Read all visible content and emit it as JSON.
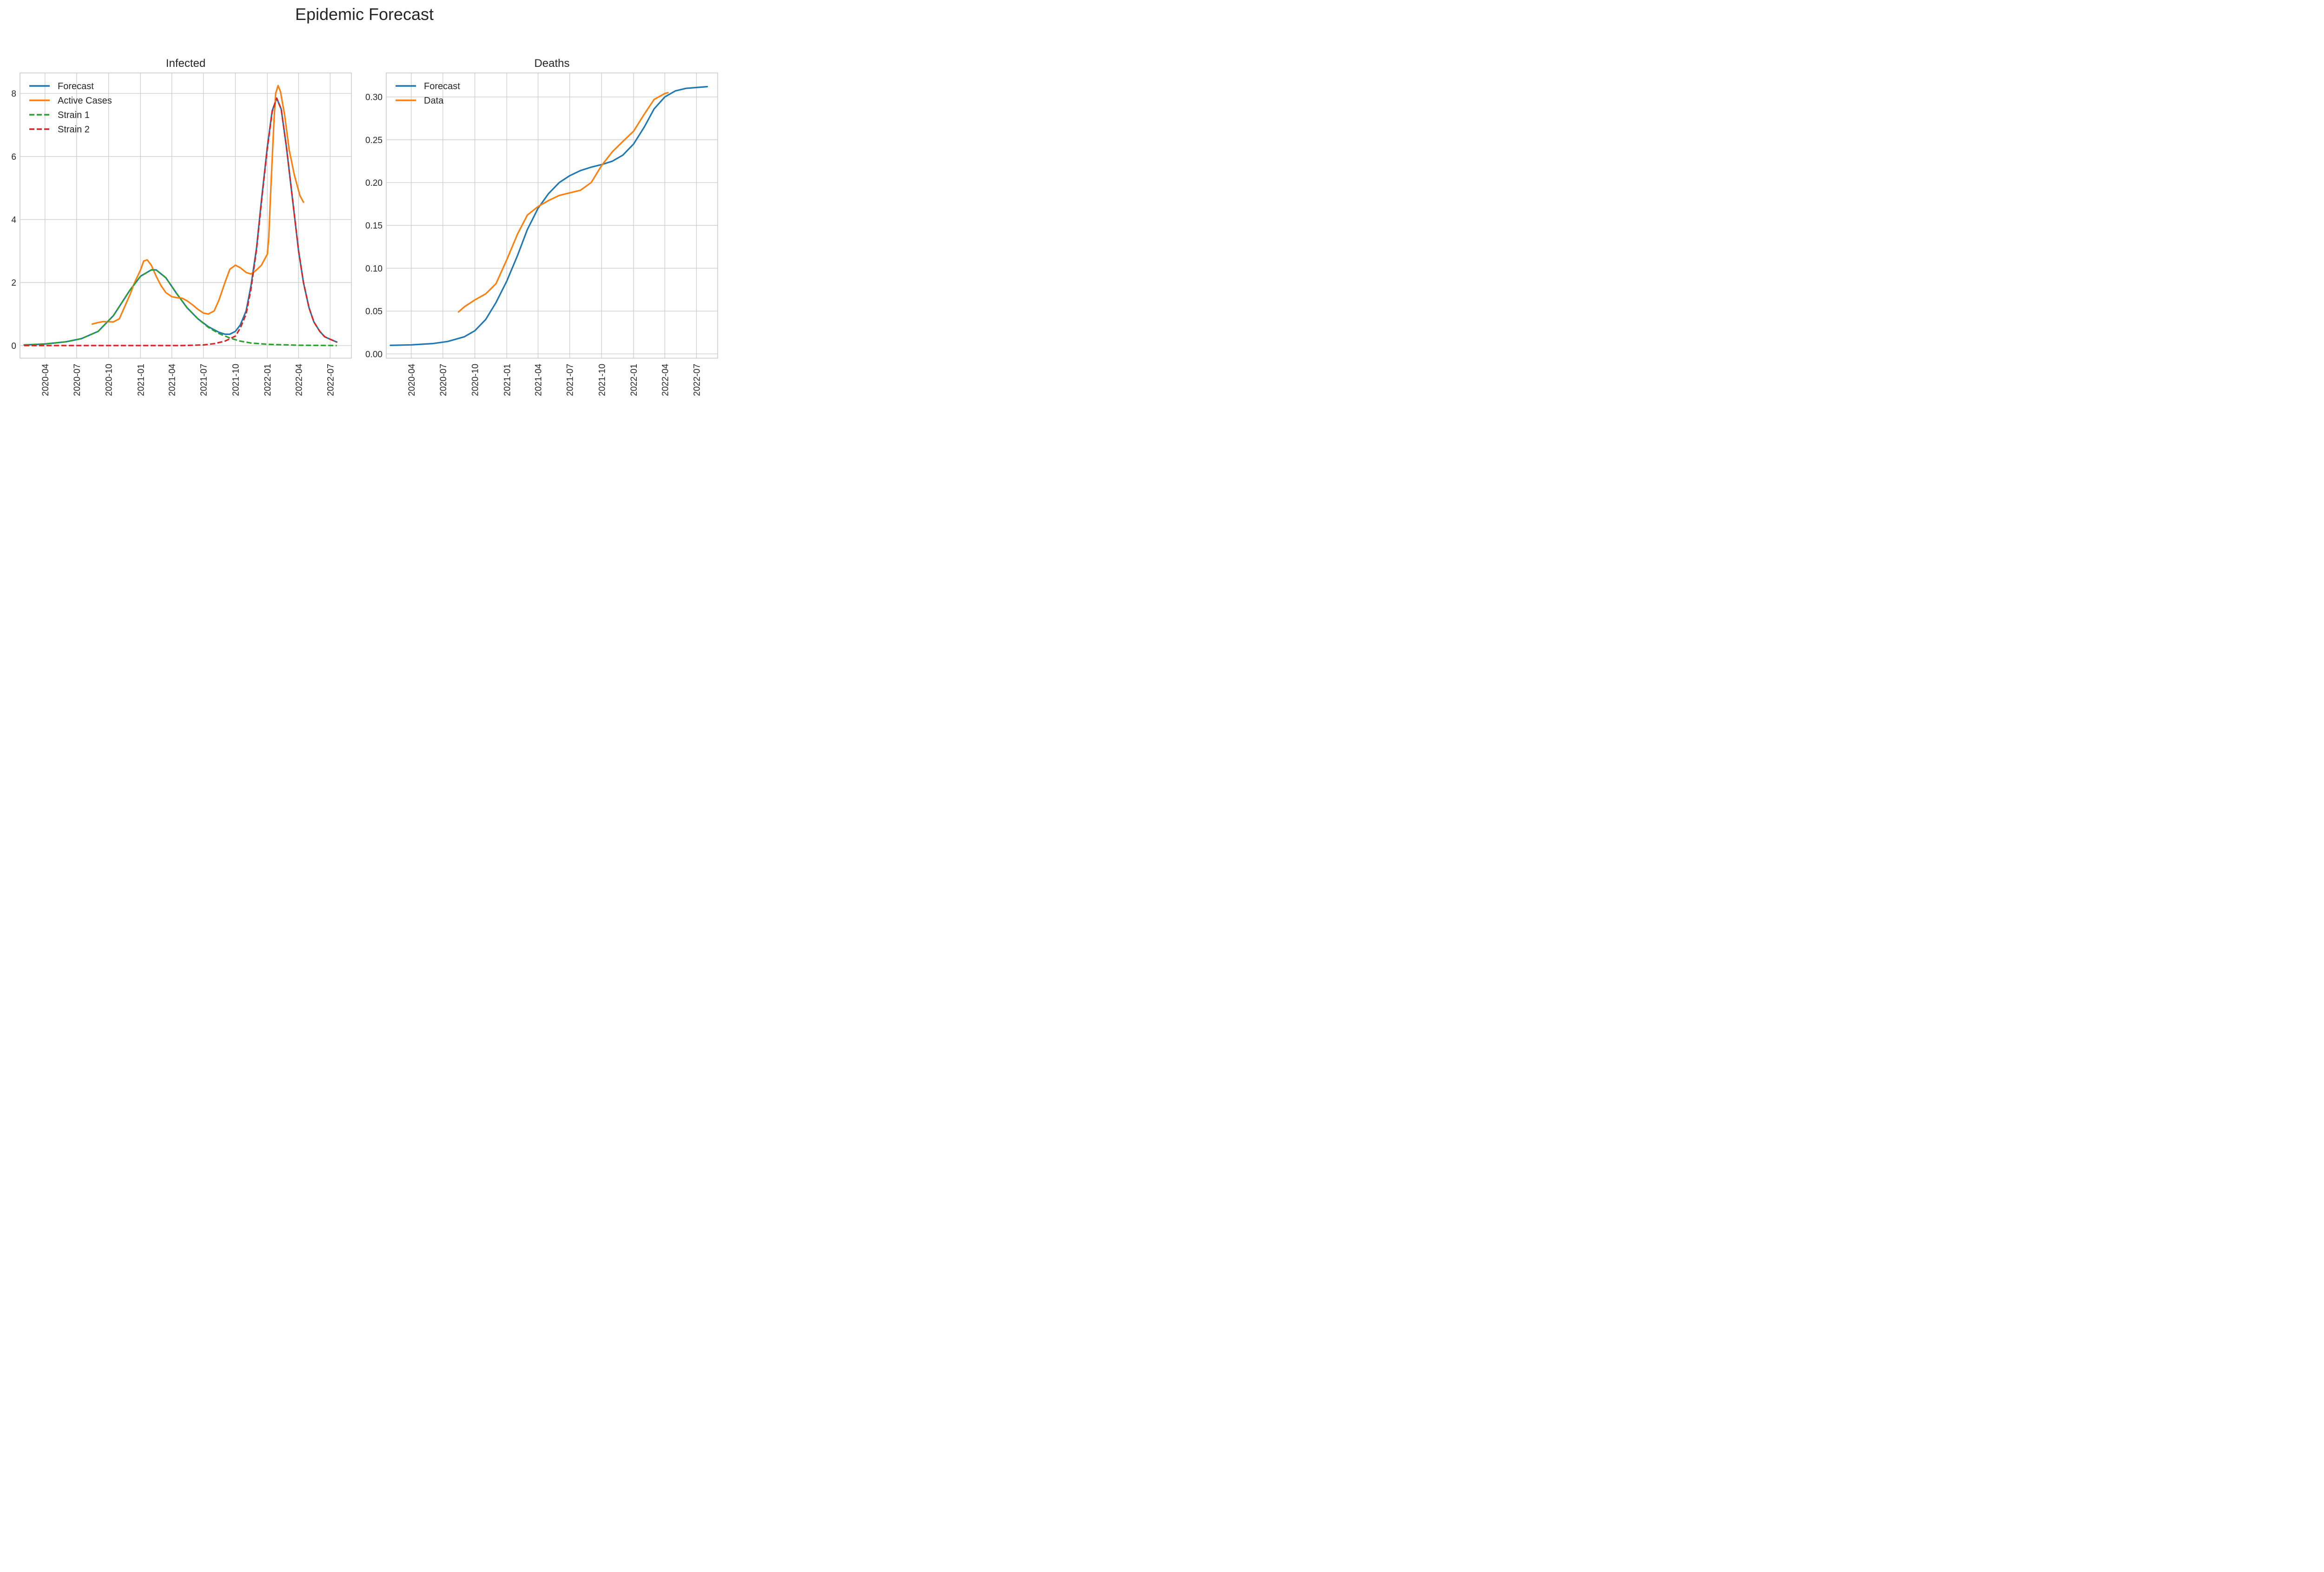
{
  "figure": {
    "title": "Epidemic Forecast"
  },
  "chart_data": [
    {
      "type": "line",
      "title": "Infected",
      "xlabel": "",
      "ylabel": "",
      "x_ticks": [
        "2020-04",
        "2020-07",
        "2020-10",
        "2021-01",
        "2021-04",
        "2021-07",
        "2021-10",
        "2022-01",
        "2022-04",
        "2022-07"
      ],
      "y_ticks": [
        "0",
        "2",
        "4",
        "6",
        "8"
      ],
      "xlim": [
        "2020-01-20",
        "2022-08-31"
      ],
      "ylim": [
        -0.4,
        8.65
      ],
      "grid": true,
      "legend_position": "top-left",
      "series": [
        {
          "name": "Forecast",
          "color": "#1f77b4",
          "style": "solid",
          "points": [
            [
              "2020-02-01",
              0.02
            ],
            [
              "2020-04-01",
              0.05
            ],
            [
              "2020-06-01",
              0.12
            ],
            [
              "2020-07-15",
              0.22
            ],
            [
              "2020-09-01",
              0.45
            ],
            [
              "2020-10-15",
              0.95
            ],
            [
              "2020-12-01",
              1.75
            ],
            [
              "2021-01-01",
              2.2
            ],
            [
              "2021-02-01",
              2.4
            ],
            [
              "2021-02-15",
              2.4
            ],
            [
              "2021-03-15",
              2.15
            ],
            [
              "2021-04-15",
              1.65
            ],
            [
              "2021-05-15",
              1.2
            ],
            [
              "2021-06-15",
              0.85
            ],
            [
              "2021-07-15",
              0.6
            ],
            [
              "2021-08-15",
              0.42
            ],
            [
              "2021-09-01",
              0.36
            ],
            [
              "2021-09-15",
              0.36
            ],
            [
              "2021-10-01",
              0.45
            ],
            [
              "2021-10-15",
              0.65
            ],
            [
              "2021-11-01",
              1.1
            ],
            [
              "2021-11-15",
              1.9
            ],
            [
              "2021-12-01",
              3.1
            ],
            [
              "2021-12-15",
              4.6
            ],
            [
              "2022-01-01",
              6.3
            ],
            [
              "2022-01-15",
              7.45
            ],
            [
              "2022-01-28",
              7.85
            ],
            [
              "2022-02-10",
              7.5
            ],
            [
              "2022-02-25",
              6.3
            ],
            [
              "2022-03-15",
              4.6
            ],
            [
              "2022-04-01",
              3.0
            ],
            [
              "2022-04-15",
              2.0
            ],
            [
              "2022-05-01",
              1.2
            ],
            [
              "2022-05-15",
              0.75
            ],
            [
              "2022-06-01",
              0.45
            ],
            [
              "2022-06-15",
              0.28
            ],
            [
              "2022-07-01",
              0.2
            ],
            [
              "2022-07-20",
              0.11
            ]
          ]
        },
        {
          "name": "Active Cases",
          "color": "#ff7f0e",
          "style": "solid",
          "points": [
            [
              "2020-08-15",
              0.68
            ],
            [
              "2020-09-01",
              0.73
            ],
            [
              "2020-09-15",
              0.76
            ],
            [
              "2020-10-15",
              0.75
            ],
            [
              "2020-11-01",
              0.85
            ],
            [
              "2020-11-15",
              1.2
            ],
            [
              "2020-12-01",
              1.6
            ],
            [
              "2020-12-15",
              2.0
            ],
            [
              "2021-01-01",
              2.4
            ],
            [
              "2021-01-10",
              2.68
            ],
            [
              "2021-01-20",
              2.72
            ],
            [
              "2021-02-01",
              2.55
            ],
            [
              "2021-02-15",
              2.2
            ],
            [
              "2021-03-01",
              1.9
            ],
            [
              "2021-03-15",
              1.68
            ],
            [
              "2021-04-01",
              1.55
            ],
            [
              "2021-04-15",
              1.52
            ],
            [
              "2021-05-01",
              1.5
            ],
            [
              "2021-05-15",
              1.42
            ],
            [
              "2021-06-01",
              1.28
            ],
            [
              "2021-06-15",
              1.15
            ],
            [
              "2021-07-01",
              1.03
            ],
            [
              "2021-07-15",
              1.0
            ],
            [
              "2021-08-01",
              1.1
            ],
            [
              "2021-08-15",
              1.45
            ],
            [
              "2021-09-01",
              2.0
            ],
            [
              "2021-09-15",
              2.42
            ],
            [
              "2021-10-01",
              2.55
            ],
            [
              "2021-10-15",
              2.47
            ],
            [
              "2021-11-01",
              2.32
            ],
            [
              "2021-11-15",
              2.27
            ],
            [
              "2021-12-01",
              2.4
            ],
            [
              "2021-12-15",
              2.55
            ],
            [
              "2022-01-01",
              2.9
            ],
            [
              "2022-01-05",
              3.4
            ],
            [
              "2022-01-12",
              5.2
            ],
            [
              "2022-01-20",
              7.1
            ],
            [
              "2022-01-25",
              8.0
            ],
            [
              "2022-02-01",
              8.25
            ],
            [
              "2022-02-08",
              8.05
            ],
            [
              "2022-02-20",
              7.3
            ],
            [
              "2022-03-05",
              6.2
            ],
            [
              "2022-03-20",
              5.4
            ],
            [
              "2022-04-05",
              4.75
            ],
            [
              "2022-04-15",
              4.55
            ]
          ]
        },
        {
          "name": "Strain 1",
          "color": "#2ca02c",
          "style": "dashed",
          "points": [
            [
              "2020-02-01",
              0.02
            ],
            [
              "2020-04-01",
              0.05
            ],
            [
              "2020-06-01",
              0.12
            ],
            [
              "2020-07-15",
              0.22
            ],
            [
              "2020-09-01",
              0.45
            ],
            [
              "2020-10-15",
              0.95
            ],
            [
              "2020-12-01",
              1.75
            ],
            [
              "2021-01-01",
              2.2
            ],
            [
              "2021-02-01",
              2.4
            ],
            [
              "2021-02-15",
              2.4
            ],
            [
              "2021-03-15",
              2.15
            ],
            [
              "2021-04-15",
              1.65
            ],
            [
              "2021-05-15",
              1.2
            ],
            [
              "2021-06-15",
              0.85
            ],
            [
              "2021-07-15",
              0.58
            ],
            [
              "2021-08-15",
              0.38
            ],
            [
              "2021-09-15",
              0.24
            ],
            [
              "2021-10-15",
              0.14
            ],
            [
              "2021-11-15",
              0.08
            ],
            [
              "2022-01-01",
              0.04
            ],
            [
              "2022-04-01",
              0.01
            ],
            [
              "2022-07-20",
              0.0
            ]
          ]
        },
        {
          "name": "Strain 2",
          "color": "#d62728",
          "style": "dashed",
          "points": [
            [
              "2020-02-01",
              0.0
            ],
            [
              "2021-01-01",
              0.0
            ],
            [
              "2021-05-01",
              0.0
            ],
            [
              "2021-07-01",
              0.02
            ],
            [
              "2021-08-01",
              0.06
            ],
            [
              "2021-09-01",
              0.14
            ],
            [
              "2021-10-01",
              0.3
            ],
            [
              "2021-10-15",
              0.55
            ],
            [
              "2021-11-01",
              1.0
            ],
            [
              "2021-11-15",
              1.8
            ],
            [
              "2021-12-01",
              3.05
            ],
            [
              "2021-12-15",
              4.55
            ],
            [
              "2022-01-01",
              6.25
            ],
            [
              "2022-01-15",
              7.42
            ],
            [
              "2022-01-28",
              7.85
            ],
            [
              "2022-02-10",
              7.5
            ],
            [
              "2022-02-25",
              6.3
            ],
            [
              "2022-03-15",
              4.6
            ],
            [
              "2022-04-01",
              3.0
            ],
            [
              "2022-04-15",
              2.0
            ],
            [
              "2022-05-01",
              1.2
            ],
            [
              "2022-05-15",
              0.75
            ],
            [
              "2022-06-01",
              0.45
            ],
            [
              "2022-06-15",
              0.28
            ],
            [
              "2022-07-01",
              0.2
            ],
            [
              "2022-07-20",
              0.11
            ]
          ]
        }
      ]
    },
    {
      "type": "line",
      "title": "Deaths",
      "xlabel": "",
      "ylabel": "",
      "x_ticks": [
        "2020-04",
        "2020-07",
        "2020-10",
        "2021-01",
        "2021-04",
        "2021-07",
        "2021-10",
        "2022-01",
        "2022-04",
        "2022-07"
      ],
      "y_ticks": [
        "0.00",
        "0.05",
        "0.10",
        "0.15",
        "0.20",
        "0.25",
        "0.30"
      ],
      "xlim": [
        "2020-01-20",
        "2022-08-31"
      ],
      "ylim": [
        -0.005,
        0.328
      ],
      "grid": true,
      "legend_position": "top-left",
      "series": [
        {
          "name": "Forecast",
          "color": "#1f77b4",
          "style": "solid",
          "points": [
            [
              "2020-02-01",
              0.01
            ],
            [
              "2020-04-01",
              0.0105
            ],
            [
              "2020-06-01",
              0.012
            ],
            [
              "2020-07-15",
              0.0145
            ],
            [
              "2020-09-01",
              0.02
            ],
            [
              "2020-10-01",
              0.027
            ],
            [
              "2020-11-01",
              0.04
            ],
            [
              "2020-12-01",
              0.06
            ],
            [
              "2021-01-01",
              0.085
            ],
            [
              "2021-02-01",
              0.115
            ],
            [
              "2021-03-01",
              0.145
            ],
            [
              "2021-04-01",
              0.17
            ],
            [
              "2021-05-01",
              0.187
            ],
            [
              "2021-06-01",
              0.2
            ],
            [
              "2021-07-01",
              0.208
            ],
            [
              "2021-08-01",
              0.214
            ],
            [
              "2021-09-01",
              0.218
            ],
            [
              "2021-10-01",
              0.221
            ],
            [
              "2021-11-01",
              0.225
            ],
            [
              "2021-12-01",
              0.232
            ],
            [
              "2022-01-01",
              0.245
            ],
            [
              "2022-02-01",
              0.265
            ],
            [
              "2022-03-01",
              0.286
            ],
            [
              "2022-04-01",
              0.3
            ],
            [
              "2022-05-01",
              0.307
            ],
            [
              "2022-06-01",
              0.31
            ],
            [
              "2022-07-01",
              0.311
            ],
            [
              "2022-08-01",
              0.312
            ]
          ]
        },
        {
          "name": "Data",
          "color": "#ff7f0e",
          "style": "solid",
          "points": [
            [
              "2020-08-15",
              0.049
            ],
            [
              "2020-09-01",
              0.055
            ],
            [
              "2020-10-01",
              0.063
            ],
            [
              "2020-11-01",
              0.07
            ],
            [
              "2020-12-01",
              0.082
            ],
            [
              "2021-01-01",
              0.11
            ],
            [
              "2021-02-01",
              0.14
            ],
            [
              "2021-03-01",
              0.162
            ],
            [
              "2021-04-01",
              0.172
            ],
            [
              "2021-05-01",
              0.179
            ],
            [
              "2021-06-01",
              0.185
            ],
            [
              "2021-07-01",
              0.188
            ],
            [
              "2021-08-01",
              0.191
            ],
            [
              "2021-09-01",
              0.2
            ],
            [
              "2021-10-01",
              0.22
            ],
            [
              "2021-11-01",
              0.236
            ],
            [
              "2021-12-01",
              0.248
            ],
            [
              "2022-01-01",
              0.26
            ],
            [
              "2022-02-01",
              0.28
            ],
            [
              "2022-03-01",
              0.297
            ],
            [
              "2022-04-01",
              0.304
            ],
            [
              "2022-04-10",
              0.305
            ]
          ]
        }
      ]
    }
  ]
}
